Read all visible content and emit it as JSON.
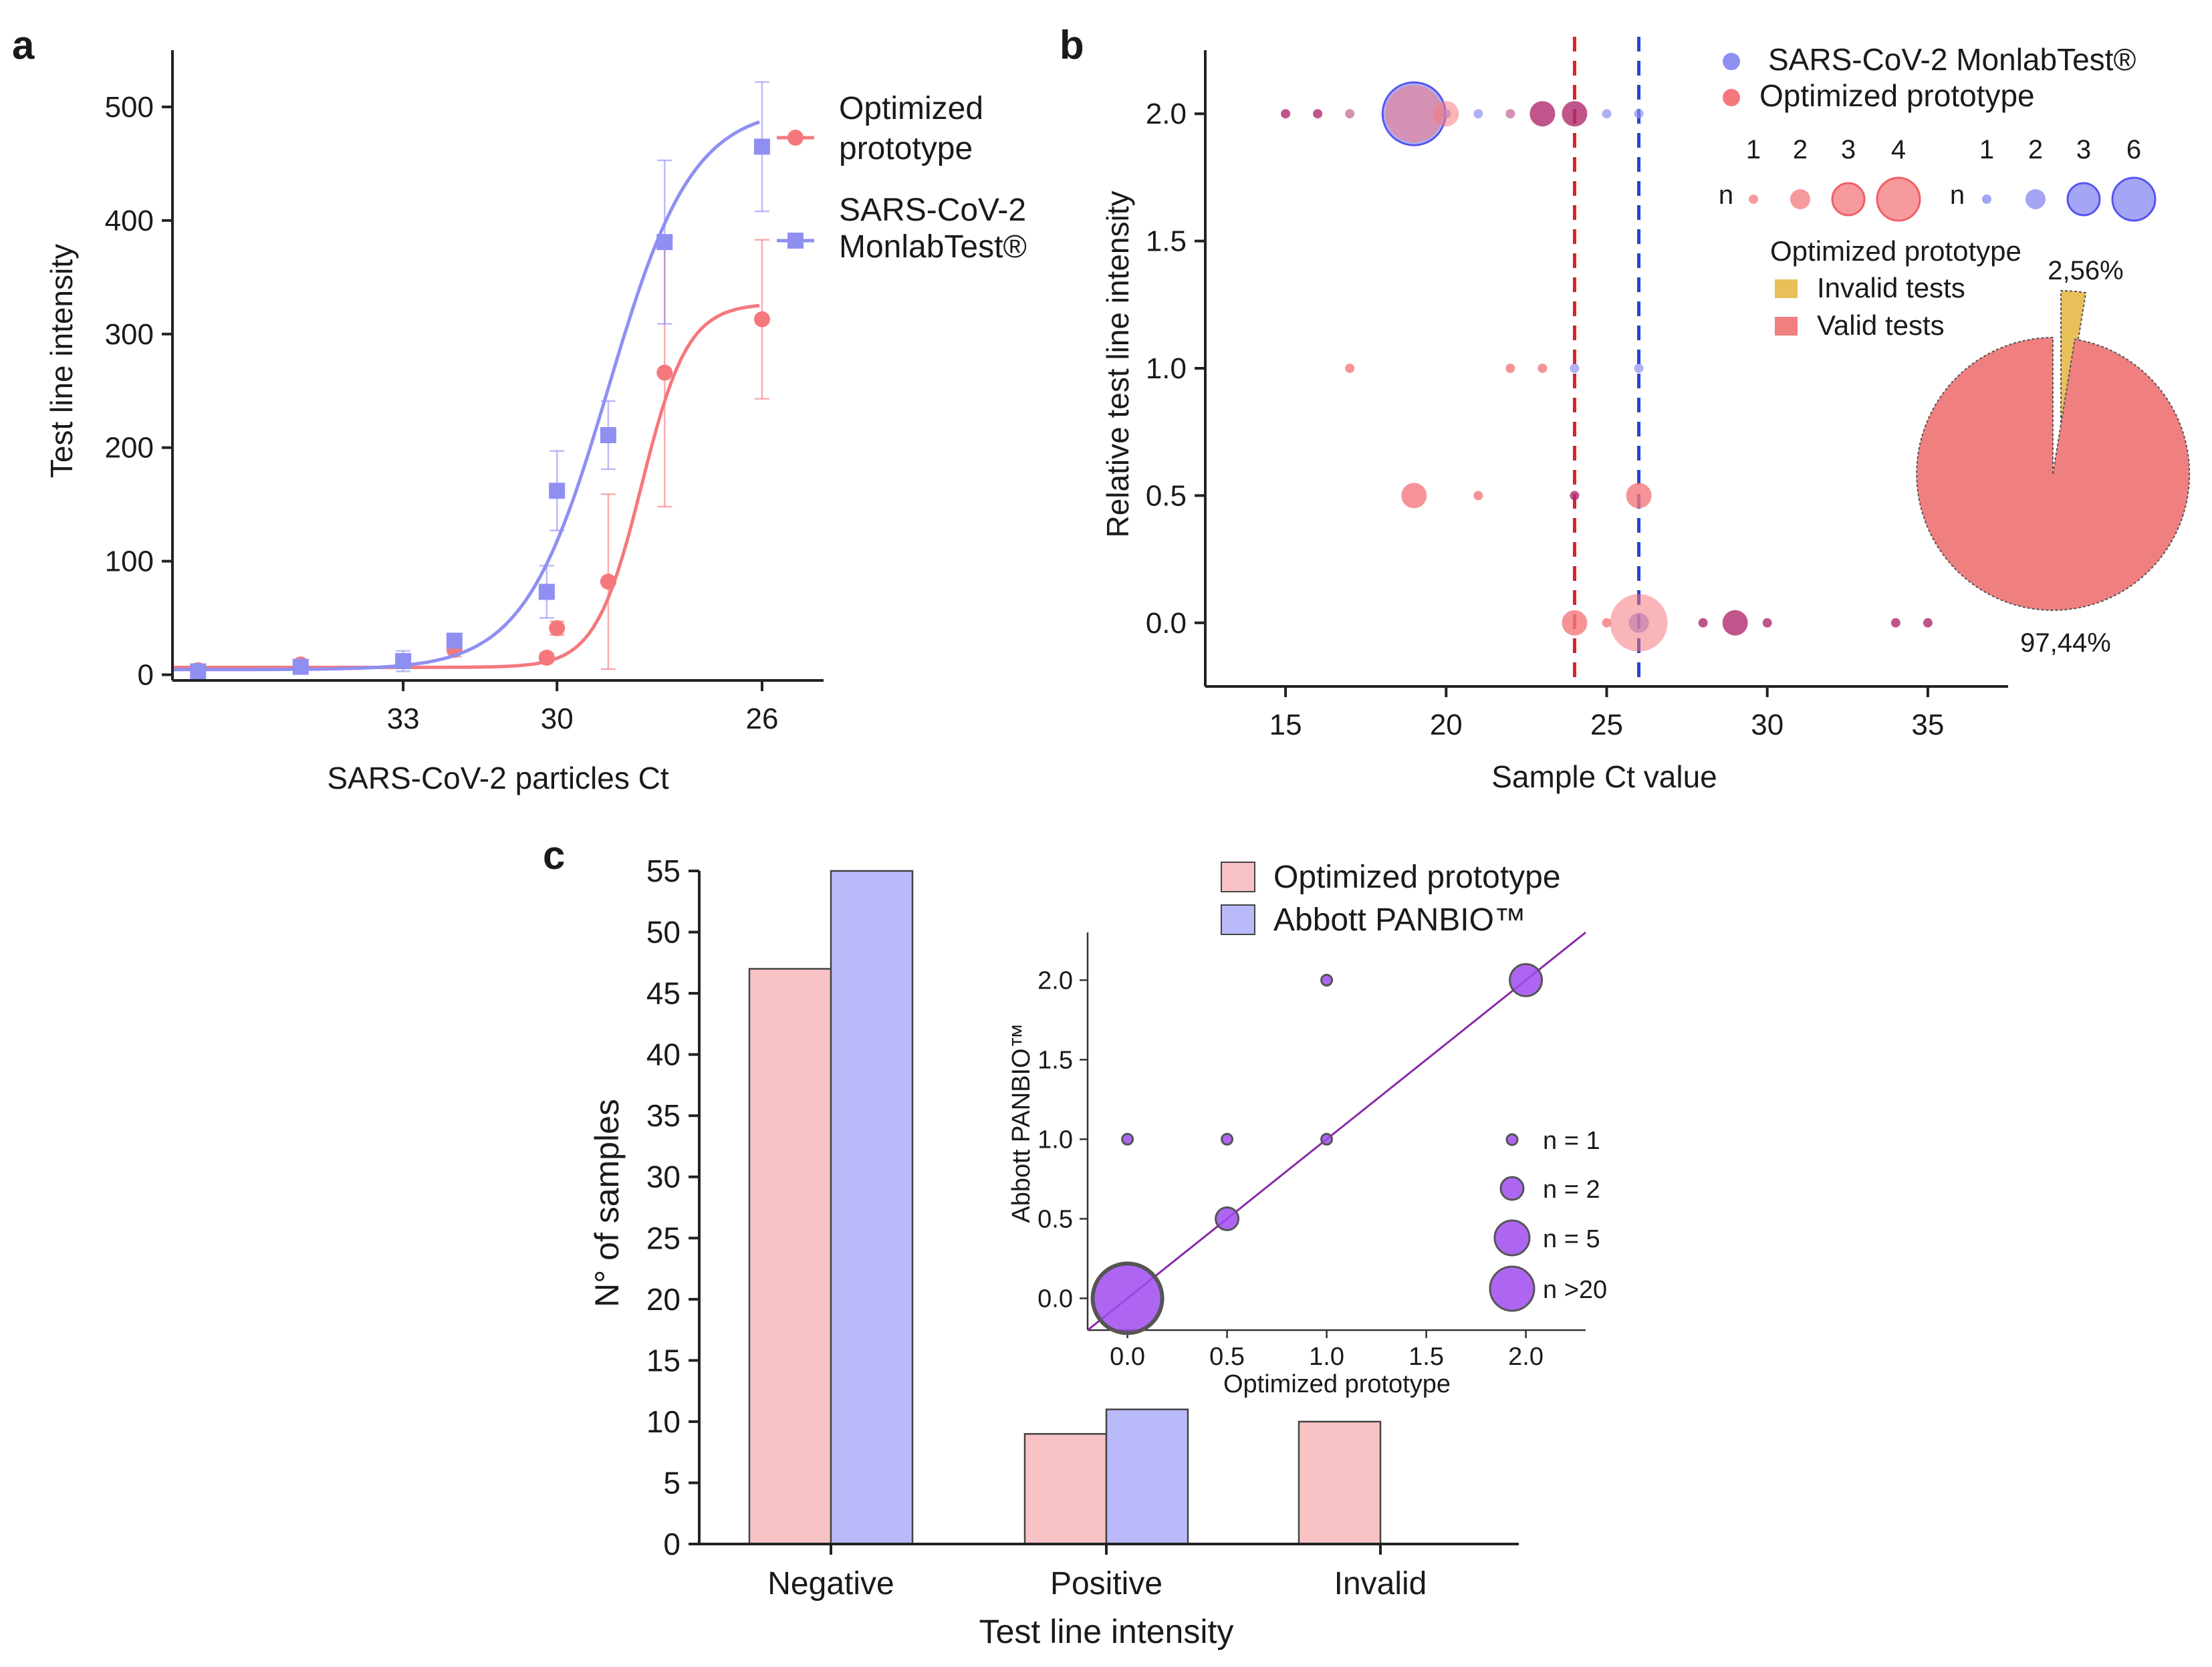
{
  "panel_labels": {
    "a": "a",
    "b": "b",
    "c": "c"
  },
  "colors": {
    "optimized": "#f4787c",
    "optimized_bar": "#f9c3c5",
    "monlab": "#8f8ff2",
    "abbott_bar": "#babafb",
    "overlap": "#b02a6e",
    "inset_marker": "#a04bf0",
    "invalid_slice": "#e8c05a",
    "valid_slice": "#f07f80",
    "red_dashed": "#d9222a",
    "blue_dashed": "#2244d6",
    "fit_line": "#8a2aa8"
  },
  "chart_data": [
    {
      "id": "a",
      "type": "line",
      "title": "",
      "xlabel": "SARS-CoV-2 particles Ct",
      "ylabel": "Test line intensity",
      "x_reversed": true,
      "xlim": [
        37.5,
        24.8
      ],
      "ylim": [
        -5,
        550
      ],
      "xticks": [
        33,
        30,
        26
      ],
      "yticks": [
        0,
        100,
        200,
        300,
        400,
        500
      ],
      "legend_position": "top-right",
      "series": [
        {
          "name": "Optimized\nprototype",
          "marker": "circle",
          "x": [
            37,
            35,
            33,
            32,
            30.2,
            30,
            29,
            27.9,
            26
          ],
          "y": [
            4,
            9,
            12,
            22,
            15,
            41,
            82,
            266,
            313
          ],
          "err": [
            2,
            3,
            4,
            6,
            4,
            6,
            77,
            118,
            70
          ]
        },
        {
          "name": "SARS-CoV-2\nMonlabTest®",
          "marker": "square",
          "x": [
            37,
            35,
            33,
            32,
            30.2,
            30,
            29,
            27.9,
            26
          ],
          "y": [
            3,
            7,
            12,
            30,
            73,
            162,
            211,
            381,
            465
          ],
          "err": [
            2,
            3,
            9,
            6,
            23,
            35,
            30,
            72,
            57
          ]
        }
      ]
    },
    {
      "id": "b",
      "type": "scatter",
      "xlabel": "Sample Ct value",
      "ylabel": "Relative test line intensity",
      "xlim": [
        12.5,
        37.5
      ],
      "ylim": [
        -0.25,
        2.25
      ],
      "xticks": [
        15,
        20,
        25,
        30,
        35
      ],
      "yticks": [
        "0.0",
        "0.5",
        "1.0",
        "1.5",
        "2.0"
      ],
      "threshold_lines": [
        {
          "x": 24,
          "color": "red",
          "style": "dashed"
        },
        {
          "x": 26,
          "color": "blue",
          "style": "dashed"
        }
      ],
      "series": [
        {
          "name": "SARS-CoV-2 MonlabTest®",
          "points": [
            {
              "x": 17,
              "y": 2,
              "n": 1
            },
            {
              "x": 19,
              "y": 2,
              "n": 6
            },
            {
              "x": 20,
              "y": 2,
              "n": 1
            },
            {
              "x": 21,
              "y": 2,
              "n": 1
            },
            {
              "x": 22,
              "y": 2,
              "n": 1
            },
            {
              "x": 25,
              "y": 2,
              "n": 1
            },
            {
              "x": 26,
              "y": 2,
              "n": 1
            },
            {
              "x": 24,
              "y": 1,
              "n": 1
            },
            {
              "x": 26,
              "y": 1,
              "n": 1
            },
            {
              "x": 26,
              "y": 0,
              "n": 2
            }
          ]
        },
        {
          "name": "Optimized prototype",
          "points": [
            {
              "x": 15,
              "y": 2,
              "n": 1
            },
            {
              "x": 16,
              "y": 2,
              "n": 1
            },
            {
              "x": 17,
              "y": 2,
              "n": 1
            },
            {
              "x": 19,
              "y": 2,
              "n": 4
            },
            {
              "x": 20,
              "y": 2,
              "n": 2
            },
            {
              "x": 22,
              "y": 2,
              "n": 1
            },
            {
              "x": 23,
              "y": 2,
              "n": 2
            },
            {
              "x": 24,
              "y": 2,
              "n": 2
            },
            {
              "x": 17,
              "y": 1,
              "n": 1
            },
            {
              "x": 22,
              "y": 1,
              "n": 1
            },
            {
              "x": 23,
              "y": 1,
              "n": 1
            },
            {
              "x": 19,
              "y": 0.5,
              "n": 2
            },
            {
              "x": 21,
              "y": 0.5,
              "n": 1
            },
            {
              "x": 24,
              "y": 0.5,
              "n": 1
            },
            {
              "x": 26,
              "y": 0.5,
              "n": 2
            },
            {
              "x": 24,
              "y": 0,
              "n": 2
            },
            {
              "x": 25,
              "y": 0,
              "n": 1
            },
            {
              "x": 26,
              "y": 0,
              "n": 4
            },
            {
              "x": 28,
              "y": 0,
              "n": 1
            },
            {
              "x": 29,
              "y": 0,
              "n": 2
            },
            {
              "x": 30,
              "y": 0,
              "n": 1
            },
            {
              "x": 34,
              "y": 0,
              "n": 1
            },
            {
              "x": 35,
              "y": 0,
              "n": 1
            }
          ]
        }
      ],
      "size_legend": {
        "label": "n",
        "optimized_values": [
          "1",
          "2",
          "3",
          "4"
        ],
        "monlab_values": [
          "1",
          "2",
          "3",
          "6"
        ]
      },
      "inset_pie": {
        "title": "Optimized prototype",
        "slices": [
          {
            "label": "Invalid tests",
            "value": 2.56,
            "display": "2,56%"
          },
          {
            "label": "Valid tests",
            "value": 97.44,
            "display": "97,44%"
          }
        ]
      }
    },
    {
      "id": "c",
      "type": "bar",
      "xlabel": "Test line intensity",
      "ylabel": "N° of samples",
      "ylim": [
        0,
        55
      ],
      "yticks": [
        0,
        5,
        10,
        15,
        20,
        25,
        30,
        35,
        40,
        45,
        50,
        55
      ],
      "categories": [
        "Negative",
        "Positive",
        "Invalid"
      ],
      "series": [
        {
          "name": "Optimized prototype",
          "values": [
            47,
            9,
            10
          ]
        },
        {
          "name": "Abbott PANBIO™",
          "values": [
            55,
            11,
            0
          ]
        }
      ],
      "inset_scatter": {
        "xlabel": "Optimized prototype",
        "ylabel": "Abbott PANBIO™",
        "xlim": [
          -0.2,
          2.3
        ],
        "ylim": [
          -0.2,
          2.3
        ],
        "xticks": [
          "0.0",
          "0.5",
          "1.0",
          "1.5",
          "2.0"
        ],
        "yticks": [
          "0.0",
          "0.5",
          "1.0",
          "1.5",
          "2.0"
        ],
        "points": [
          {
            "x": 0,
            "y": 0,
            "n": 25
          },
          {
            "x": 0,
            "y": 1,
            "n": 1
          },
          {
            "x": 0.5,
            "y": 1,
            "n": 1
          },
          {
            "x": 0.5,
            "y": 0.5,
            "n": 2
          },
          {
            "x": 1,
            "y": 1,
            "n": 1
          },
          {
            "x": 1,
            "y": 2,
            "n": 1
          },
          {
            "x": 2,
            "y": 2,
            "n": 4
          }
        ],
        "fit_line": {
          "from": [
            -0.2,
            -0.2
          ],
          "to": [
            2.3,
            2.3
          ]
        },
        "size_legend": [
          "n = 1",
          "n = 2",
          "n = 5",
          "n >20"
        ]
      }
    }
  ]
}
